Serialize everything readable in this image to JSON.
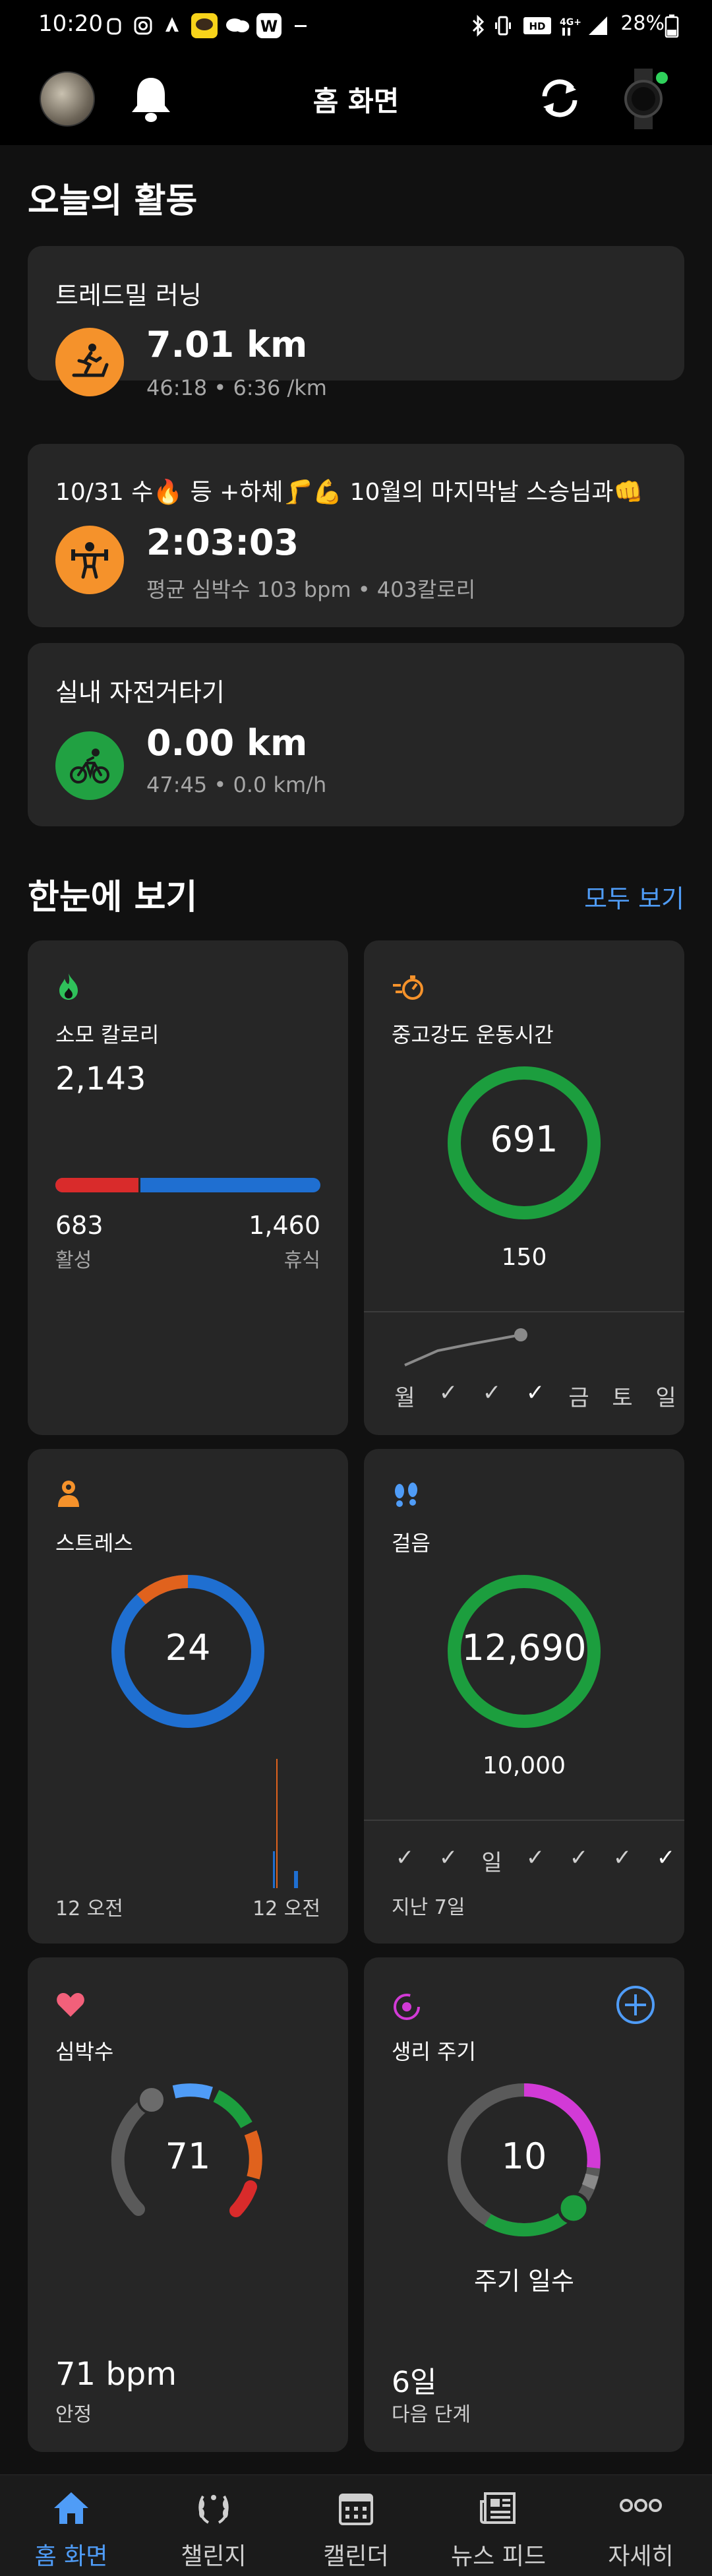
{
  "status_bar": {
    "time": "10:20",
    "battery": "28%",
    "icons": [
      "wifi-hd-icon",
      "bluetooth-icon",
      "signal-icon",
      "battery-icon"
    ]
  },
  "header": {
    "title": "홈 화면",
    "icons": [
      "avatar",
      "bell-icon",
      "sync-icon",
      "watch-icon"
    ]
  },
  "today": {
    "title": "오늘의 활동",
    "activities": [
      {
        "name": "트레드밀 러닝",
        "value": "7.01 km",
        "sub": "46:18 • 6:36 /km",
        "icon": "treadmill-icon",
        "color": "#f5922b"
      },
      {
        "name": "10/31 수🔥 등 +하체🦵💪 10월의 마지막날 스승님과👊",
        "value": "2:03:03",
        "sub": "평균 심박수 103 bpm • 403칼로리",
        "icon": "strength-icon",
        "color": "#f5922b"
      },
      {
        "name": "실내 자전거타기",
        "value": "0.00 km",
        "sub": "47:45 • 0.0 km/h",
        "icon": "bike-icon",
        "color": "#21a142"
      }
    ]
  },
  "glance": {
    "title": "한눈에 보기",
    "see_all": "모두 보기",
    "calories": {
      "label": "소모 칼로리",
      "total": "2,143",
      "active": "683",
      "active_label": "활성",
      "resting": "1,460",
      "resting_label": "휴식",
      "active_fraction": 0.32,
      "icon": "flame-icon"
    },
    "intensity": {
      "label": "중고강도 운동시간",
      "value": "691",
      "goal": "150",
      "days": [
        "월",
        "✓",
        "✓",
        "✓",
        "금",
        "토",
        "일"
      ],
      "icon": "intensity-icon"
    },
    "stress": {
      "label": "스트레스",
      "value": "24",
      "start": "12 오전",
      "end": "12 오전",
      "icon": "stress-icon"
    },
    "steps": {
      "label": "걸음",
      "value": "12,690",
      "goal": "10,000",
      "days": [
        "✓",
        "✓",
        "일",
        "✓",
        "✓",
        "✓",
        "✓"
      ],
      "footer": "지난 7일",
      "icon": "footprints-icon"
    },
    "heart": {
      "label": "심박수",
      "value": "71",
      "bpm": "71 bpm",
      "state": "안정",
      "icon": "heart-icon"
    },
    "cycle": {
      "label": "생리 주기",
      "value": "10",
      "caption": "주기 일수",
      "next": "6일",
      "next_label": "다음 단계",
      "icon": "cycle-icon"
    }
  },
  "tabs": [
    {
      "label": "홈 화면",
      "icon": "home-icon",
      "active": true
    },
    {
      "label": "챌린지",
      "icon": "laurel-icon",
      "active": false
    },
    {
      "label": "캘린더",
      "icon": "calendar-icon",
      "active": false
    },
    {
      "label": "뉴스 피드",
      "icon": "newsfeed-icon",
      "active": false
    },
    {
      "label": "자세히",
      "icon": "more-icon",
      "active": false
    }
  ]
}
